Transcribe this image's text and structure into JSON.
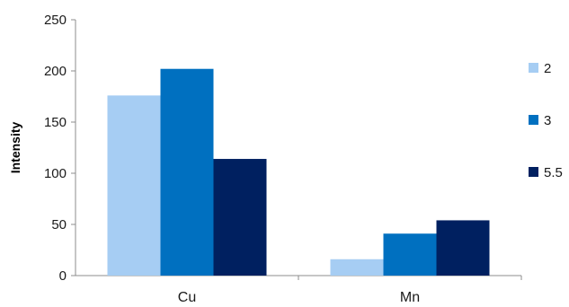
{
  "chart_data": {
    "type": "bar",
    "title": "",
    "xlabel": "",
    "ylabel": "Intensity",
    "categories": [
      "Cu",
      "Mn"
    ],
    "series": [
      {
        "name": "2",
        "values": [
          176,
          16
        ],
        "color": "#a6cdf3"
      },
      {
        "name": "3",
        "values": [
          202,
          41
        ],
        "color": "#0070c0"
      },
      {
        "name": "5.5",
        "values": [
          114,
          54
        ],
        "color": "#002060"
      }
    ],
    "ylim": [
      0,
      250
    ],
    "yticks": [
      "0",
      "50",
      "100",
      "150",
      "200",
      "250"
    ],
    "grid": false,
    "legend_position": "right"
  }
}
